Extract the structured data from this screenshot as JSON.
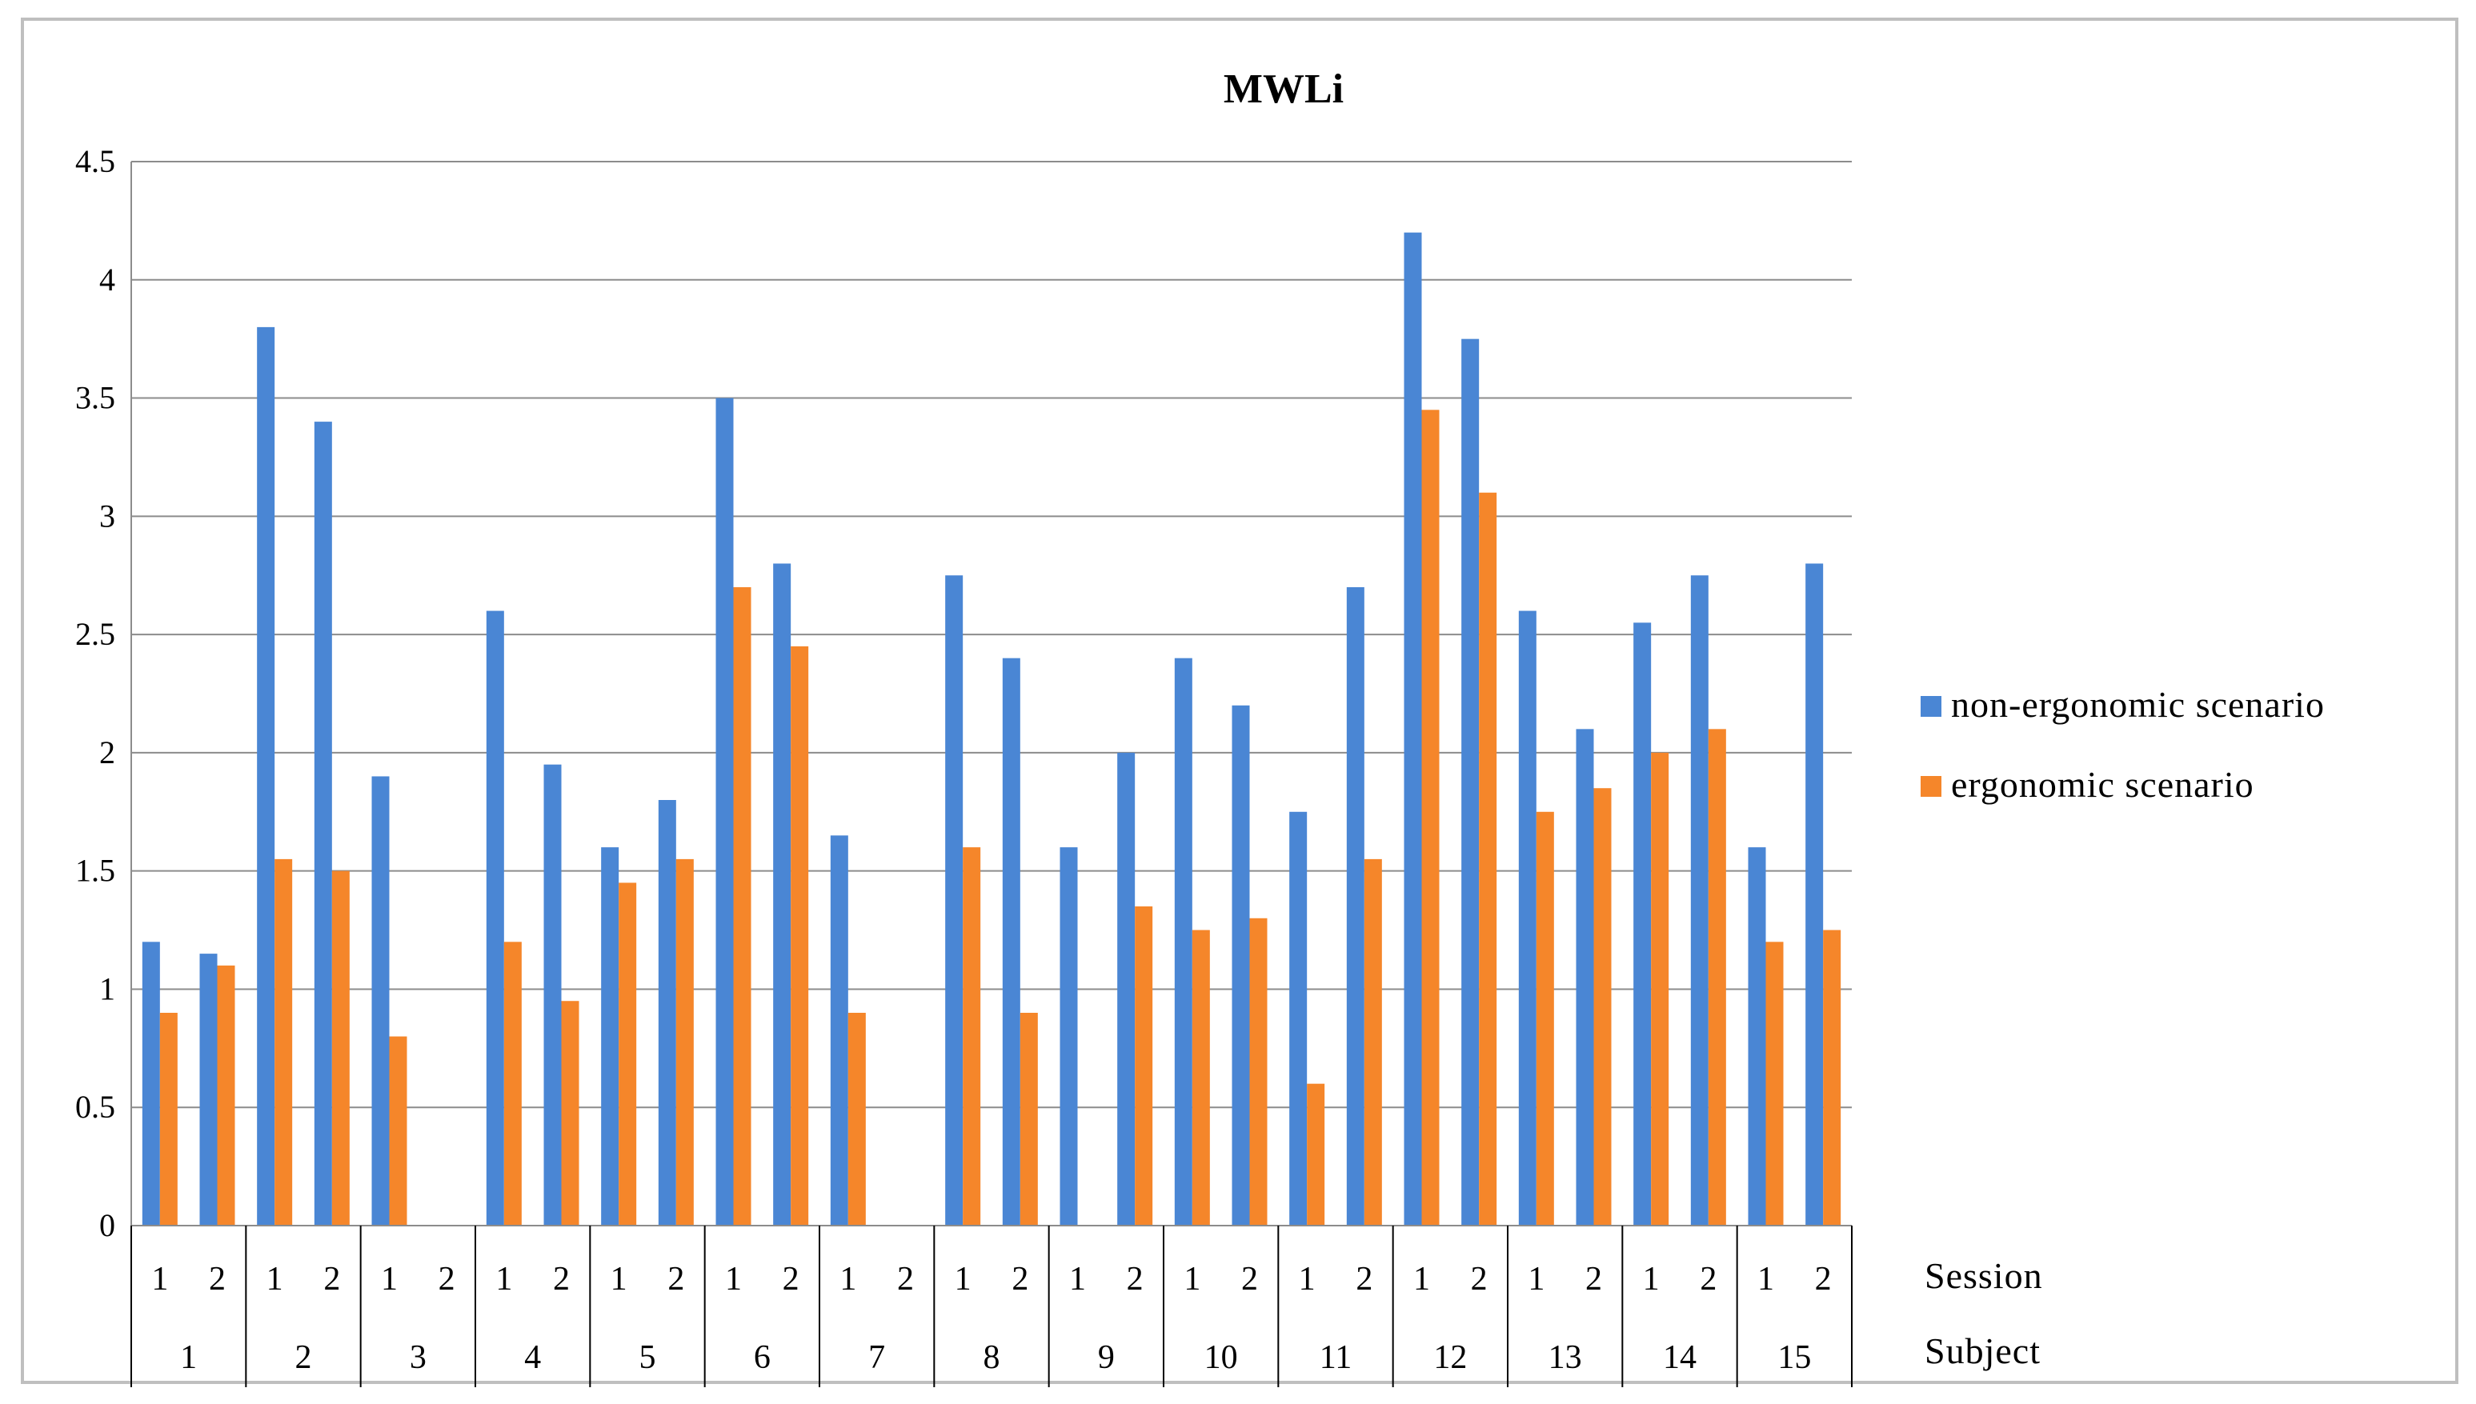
{
  "chart_data": {
    "type": "bar",
    "title": "MWLi",
    "xlabel": "",
    "ylabel": "",
    "ylim": [
      0,
      4.5
    ],
    "yticks": [
      "0",
      "0.5",
      "1",
      "1.5",
      "2",
      "2.5",
      "3",
      "3.5",
      "4",
      "4.5"
    ],
    "grid": true,
    "legend_position": "right",
    "category_levels": [
      "Session",
      "Subject"
    ],
    "subjects": [
      "1",
      "2",
      "3",
      "4",
      "5",
      "6",
      "7",
      "8",
      "9",
      "10",
      "11",
      "12",
      "13",
      "14",
      "15"
    ],
    "sessions": [
      "1",
      "2"
    ],
    "categories": [
      "1-1",
      "1-2",
      "2-1",
      "2-2",
      "3-1",
      "3-2",
      "4-1",
      "4-2",
      "5-1",
      "5-2",
      "6-1",
      "6-2",
      "7-1",
      "7-2",
      "8-1",
      "8-2",
      "9-1",
      "9-2",
      "10-1",
      "10-2",
      "11-1",
      "11-2",
      "12-1",
      "12-2",
      "13-1",
      "13-2",
      "14-1",
      "14-2",
      "15-1",
      "15-2"
    ],
    "series": [
      {
        "name": "non-ergonomic scenario",
        "color": "#4a86d4",
        "values": [
          1.2,
          1.15,
          3.8,
          3.4,
          1.9,
          0,
          2.6,
          1.95,
          1.6,
          1.8,
          3.5,
          2.8,
          1.65,
          0,
          2.75,
          2.4,
          1.6,
          2.0,
          2.4,
          2.2,
          1.75,
          2.7,
          4.2,
          3.75,
          2.6,
          2.1,
          2.55,
          2.75,
          1.6,
          2.8
        ]
      },
      {
        "name": "ergonomic scenario",
        "color": "#f5862a",
        "values": [
          0.9,
          1.1,
          1.55,
          1.5,
          0.8,
          0,
          1.2,
          0.95,
          1.45,
          1.55,
          2.7,
          2.45,
          0.9,
          0,
          1.6,
          0.9,
          0,
          1.35,
          1.25,
          1.3,
          0.6,
          1.55,
          3.45,
          3.1,
          1.75,
          1.85,
          2.0,
          2.1,
          1.2,
          1.25
        ]
      }
    ]
  }
}
